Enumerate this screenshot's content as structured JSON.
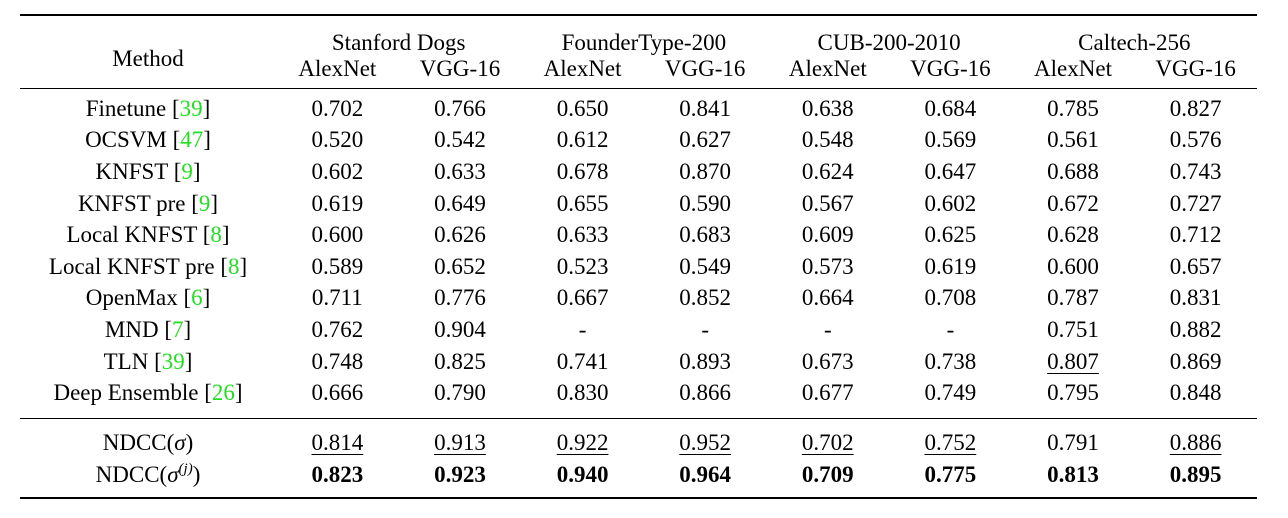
{
  "header": {
    "method_label": "Method",
    "datasets": [
      "Stanford Dogs",
      "FounderType-200",
      "CUB-200-2010",
      "Caltech-256"
    ],
    "sub_columns": [
      "AlexNet",
      "VGG-16",
      "AlexNet",
      "VGG-16",
      "AlexNet",
      "VGG-16",
      "AlexNet",
      "VGG-16"
    ]
  },
  "rows": [
    {
      "method": "Finetune",
      "cite": "39",
      "values": [
        "0.702",
        "0.766",
        "0.650",
        "0.841",
        "0.638",
        "0.684",
        "0.785",
        "0.827"
      ],
      "underline": [
        false,
        false,
        false,
        false,
        false,
        false,
        false,
        false
      ]
    },
    {
      "method": "OCSVM",
      "cite": "47",
      "values": [
        "0.520",
        "0.542",
        "0.612",
        "0.627",
        "0.548",
        "0.569",
        "0.561",
        "0.576"
      ],
      "underline": [
        false,
        false,
        false,
        false,
        false,
        false,
        false,
        false
      ]
    },
    {
      "method": "KNFST",
      "cite": "9",
      "values": [
        "0.602",
        "0.633",
        "0.678",
        "0.870",
        "0.624",
        "0.647",
        "0.688",
        "0.743"
      ],
      "underline": [
        false,
        false,
        false,
        false,
        false,
        false,
        false,
        false
      ]
    },
    {
      "method": "KNFST pre",
      "cite": "9",
      "values": [
        "0.619",
        "0.649",
        "0.655",
        "0.590",
        "0.567",
        "0.602",
        "0.672",
        "0.727"
      ],
      "underline": [
        false,
        false,
        false,
        false,
        false,
        false,
        false,
        false
      ]
    },
    {
      "method": "Local KNFST",
      "cite": "8",
      "values": [
        "0.600",
        "0.626",
        "0.633",
        "0.683",
        "0.609",
        "0.625",
        "0.628",
        "0.712"
      ],
      "underline": [
        false,
        false,
        false,
        false,
        false,
        false,
        false,
        false
      ]
    },
    {
      "method": "Local KNFST pre",
      "cite": "8",
      "values": [
        "0.589",
        "0.652",
        "0.523",
        "0.549",
        "0.573",
        "0.619",
        "0.600",
        "0.657"
      ],
      "underline": [
        false,
        false,
        false,
        false,
        false,
        false,
        false,
        false
      ]
    },
    {
      "method": "OpenMax",
      "cite": "6",
      "values": [
        "0.711",
        "0.776",
        "0.667",
        "0.852",
        "0.664",
        "0.708",
        "0.787",
        "0.831"
      ],
      "underline": [
        false,
        false,
        false,
        false,
        false,
        false,
        false,
        false
      ]
    },
    {
      "method": "MND",
      "cite": "7",
      "values": [
        "0.762",
        "0.904",
        "-",
        "-",
        "-",
        "-",
        "0.751",
        "0.882"
      ],
      "underline": [
        false,
        false,
        false,
        false,
        false,
        false,
        false,
        false
      ]
    },
    {
      "method": "TLN",
      "cite": "39",
      "values": [
        "0.748",
        "0.825",
        "0.741",
        "0.893",
        "0.673",
        "0.738",
        "0.807",
        "0.869"
      ],
      "underline": [
        false,
        false,
        false,
        false,
        false,
        false,
        true,
        false
      ]
    },
    {
      "method": "Deep Ensemble",
      "cite": "26",
      "values": [
        "0.666",
        "0.790",
        "0.830",
        "0.866",
        "0.677",
        "0.749",
        "0.795",
        "0.848"
      ],
      "underline": [
        false,
        false,
        false,
        false,
        false,
        false,
        false,
        false
      ]
    }
  ],
  "ours": [
    {
      "method_prefix": "NDCC(",
      "sigma": "σ",
      "sup": "",
      "method_suffix": ")",
      "values": [
        "0.814",
        "0.913",
        "0.922",
        "0.952",
        "0.702",
        "0.752",
        "0.791",
        "0.886"
      ],
      "underline": [
        true,
        true,
        true,
        true,
        true,
        true,
        false,
        true
      ],
      "bold": false
    },
    {
      "method_prefix": "NDCC(",
      "sigma": "σ",
      "sup": "(j)",
      "method_suffix": ")",
      "values": [
        "0.823",
        "0.923",
        "0.940",
        "0.964",
        "0.709",
        "0.775",
        "0.813",
        "0.895"
      ],
      "underline": [
        false,
        false,
        false,
        false,
        false,
        false,
        false,
        false
      ],
      "bold": true
    }
  ]
}
